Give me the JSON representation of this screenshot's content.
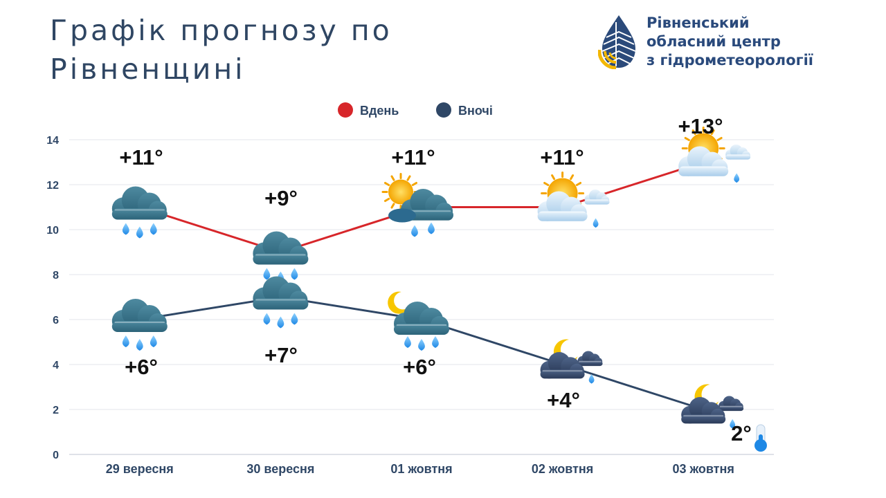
{
  "header": {
    "title_line1": "Графік прогнозу по",
    "title_line2": "Рівненщині",
    "org_line1": "Рівненський",
    "org_line2": "обласний центр",
    "org_line3": "з гідрометеорології"
  },
  "colors": {
    "day": "#d7262a",
    "night": "#2f4766",
    "title": "#2f4663",
    "org": "#2a4a7c",
    "logo_blue": "#2b4a7a",
    "logo_yellow": "#f2b705"
  },
  "chart_data": {
    "type": "line",
    "categories": [
      "29 вересня",
      "30 вересня",
      "01 жовтня",
      "02 жовтня",
      "03 жовтня"
    ],
    "series": [
      {
        "name": "Вдень",
        "values": [
          11,
          9,
          11,
          11,
          13
        ],
        "labels": [
          "+11°",
          "+9°",
          "+11°",
          "+11°",
          "+13°"
        ],
        "icons": [
          "rain-cloud-icon",
          "rain-cloud-icon",
          "sun-rain-cloud-icon",
          "sun-cloud-drizzle-icon",
          "sun-cloud-drizzle-icon"
        ]
      },
      {
        "name": "Вночі",
        "values": [
          6,
          7,
          6,
          4,
          2
        ],
        "labels": [
          "+6°",
          "+7°",
          "+6°",
          "+4°",
          "2°"
        ],
        "icons": [
          "rain-cloud-icon",
          "rain-cloud-icon",
          "moon-rain-cloud-icon",
          "moon-cloud-drizzle-icon",
          "moon-cloud-drizzle-icon"
        ]
      }
    ],
    "ylim": [
      0,
      14
    ],
    "yticks": [
      0,
      2,
      4,
      6,
      8,
      10,
      12,
      14
    ],
    "grid": true,
    "legend": "top-center"
  }
}
